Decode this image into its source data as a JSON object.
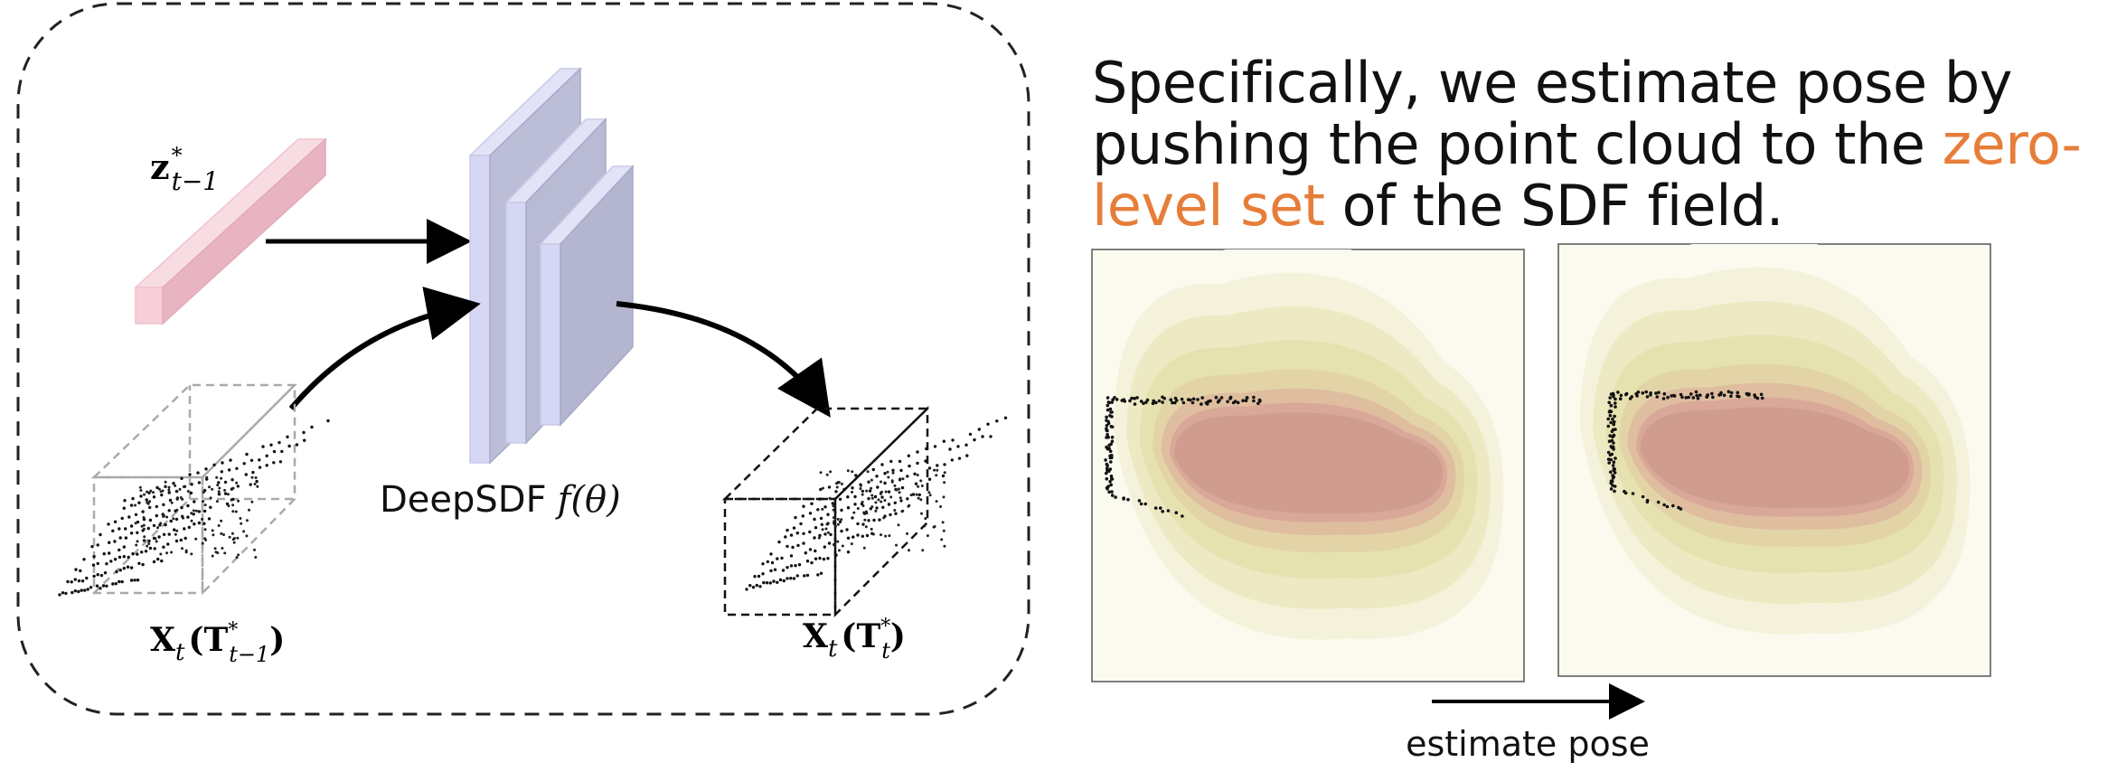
{
  "diagram": {
    "latent_label": {
      "base": "z",
      "sup": "*",
      "sub": "t−1"
    },
    "network_label": {
      "text": "DeepSDF",
      "func": "f(θ)"
    },
    "input_label": {
      "base": "X",
      "sub": "t",
      "arg": "T",
      "argsup": "*",
      "argsub": "t−1"
    },
    "output_label": {
      "base": "X",
      "sub": "t",
      "arg": "T",
      "argsup": "*",
      "argsub": "t"
    }
  },
  "headline": {
    "before": "Specifically, we estimate pose by pushing the point cloud to the ",
    "highlight": "zero-level set",
    "after": " of the SDF field."
  },
  "arrow_caption": "estimate pose",
  "colors": {
    "highlight": "#e67e3a",
    "latent_bar": "#f3c9d3",
    "network_block": "#b7b8cf",
    "sdf_contours": [
      "#fafaef",
      "#f4f2da",
      "#ede9c3",
      "#e6e2b0",
      "#e3d4a8",
      "#dfbd9f",
      "#d9a898",
      "#d09c8e"
    ]
  }
}
